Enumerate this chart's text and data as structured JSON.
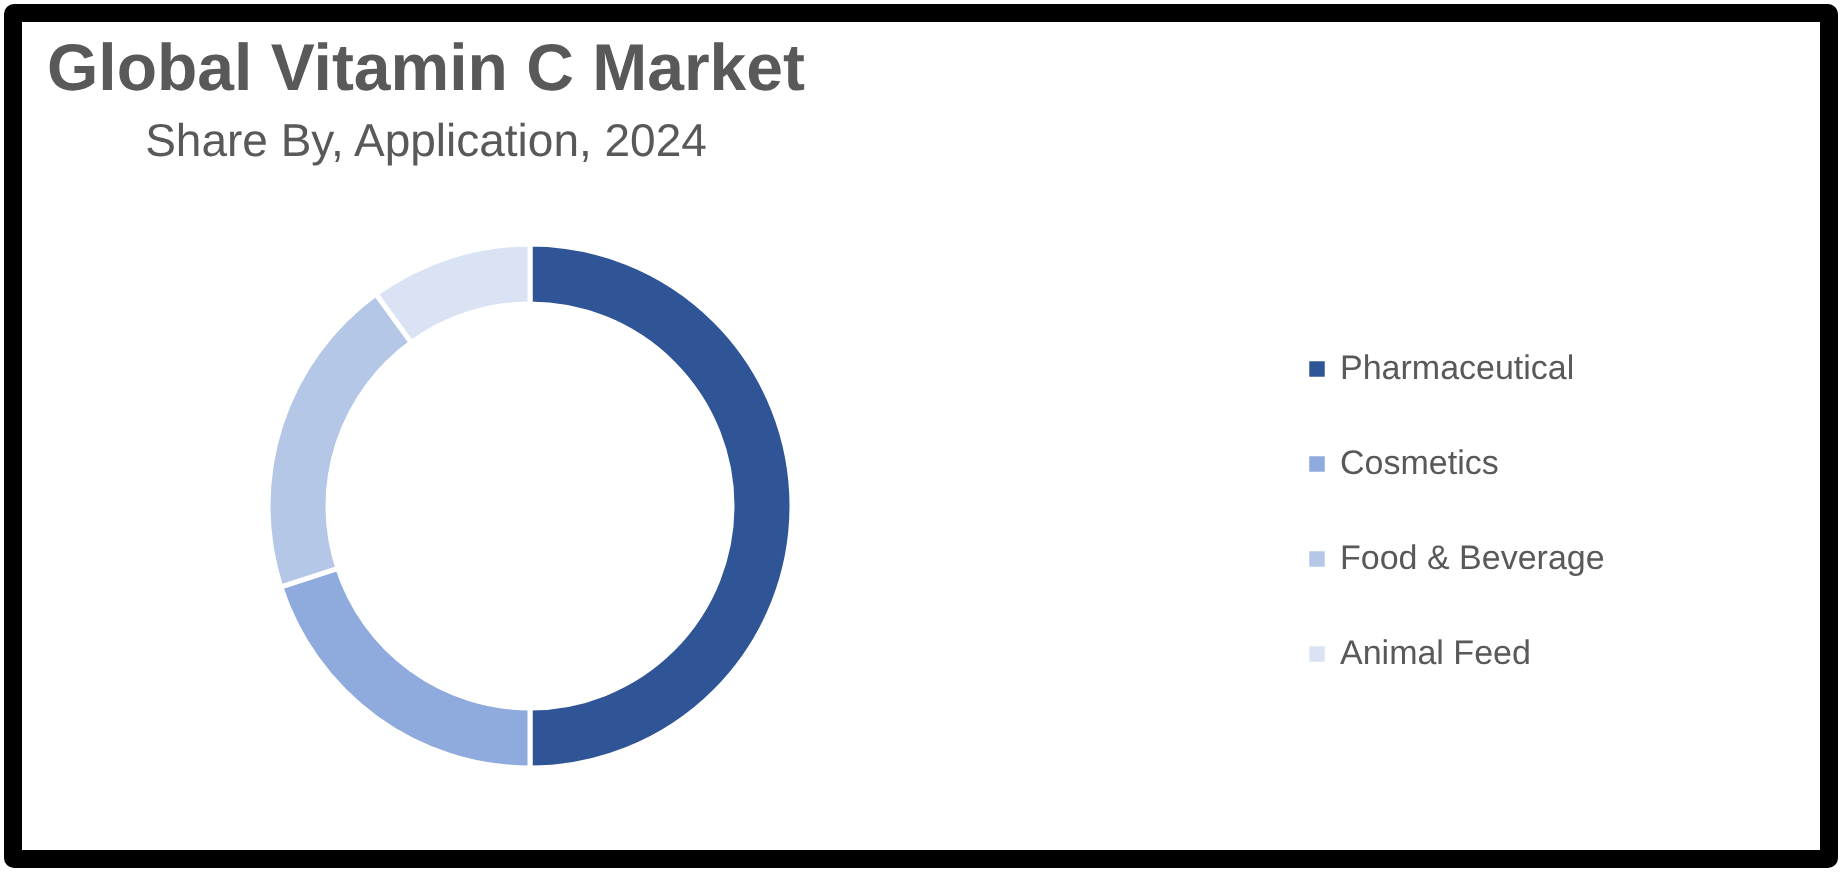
{
  "chart_data": {
    "type": "donut",
    "title": "Global Vitamin C Market",
    "subtitle": "Share By, Application, 2024",
    "categories": [
      "Pharmaceutical",
      "Cosmetics",
      "Food & Beverage",
      "Animal Feed"
    ],
    "values": [
      50,
      20,
      20,
      10
    ],
    "colors": [
      "#2f5597",
      "#8faadc",
      "#b4c7e7",
      "#dae3f3"
    ],
    "legend": "right"
  }
}
